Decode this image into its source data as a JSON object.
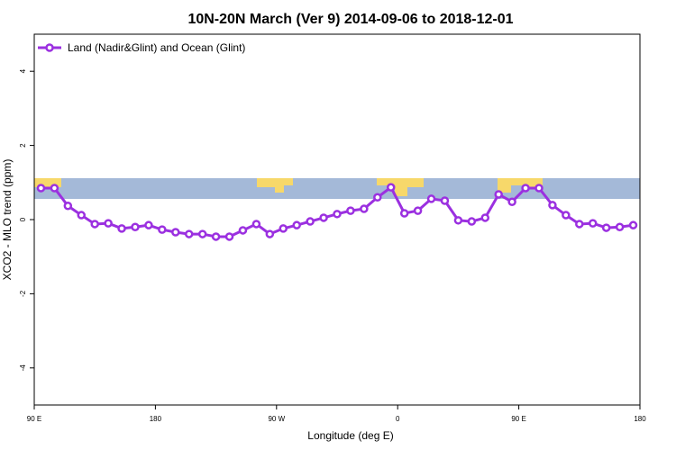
{
  "chart_data": {
    "type": "line",
    "title": "10N-20N March (Ver 9)   2014-09-06 to 2018-12-01",
    "xlabel": "Longitude (deg E)",
    "ylabel": "XCO2 - MLO trend (ppm)",
    "xlim": [
      90,
      540
    ],
    "ylim": [
      -5,
      5
    ],
    "xticks": [
      {
        "value": 90,
        "label": "90 E"
      },
      180,
      {
        "value": 270,
        "label": "90 W"
      },
      {
        "value": 360,
        "label": "0"
      },
      {
        "value": 450,
        "label": "90 E"
      },
      {
        "value": 540,
        "label": "180"
      }
    ],
    "yticks": [
      -4,
      -2,
      0,
      2,
      4
    ],
    "legend": "top-left",
    "x": [
      95,
      105,
      115,
      125,
      135,
      145,
      155,
      165,
      175,
      185,
      195,
      205,
      215,
      225,
      235,
      245,
      255,
      265,
      275,
      285,
      295,
      305,
      315,
      325,
      335,
      345,
      355,
      365,
      375,
      385,
      395,
      405,
      415,
      425,
      435,
      445,
      455,
      465,
      475,
      485,
      495,
      505,
      515,
      525,
      535
    ],
    "series": [
      {
        "name": "Land (Nadir&Glint) and Ocean (Glint)",
        "color": "#9b30e0",
        "values": [
          0.85,
          0.85,
          0.37,
          0.12,
          -0.12,
          -0.1,
          -0.24,
          -0.2,
          -0.15,
          -0.27,
          -0.34,
          -0.39,
          -0.39,
          -0.46,
          -0.46,
          -0.29,
          -0.12,
          -0.39,
          -0.24,
          -0.15,
          -0.05,
          0.05,
          0.15,
          0.24,
          0.29,
          0.6,
          0.87,
          0.17,
          0.24,
          0.56,
          0.51,
          -0.02,
          -0.05,
          0.05,
          0.68,
          0.48,
          0.85,
          0.85,
          0.39,
          0.12,
          -0.12,
          -0.1,
          -0.22,
          -0.2,
          -0.15
        ]
      }
    ]
  }
}
